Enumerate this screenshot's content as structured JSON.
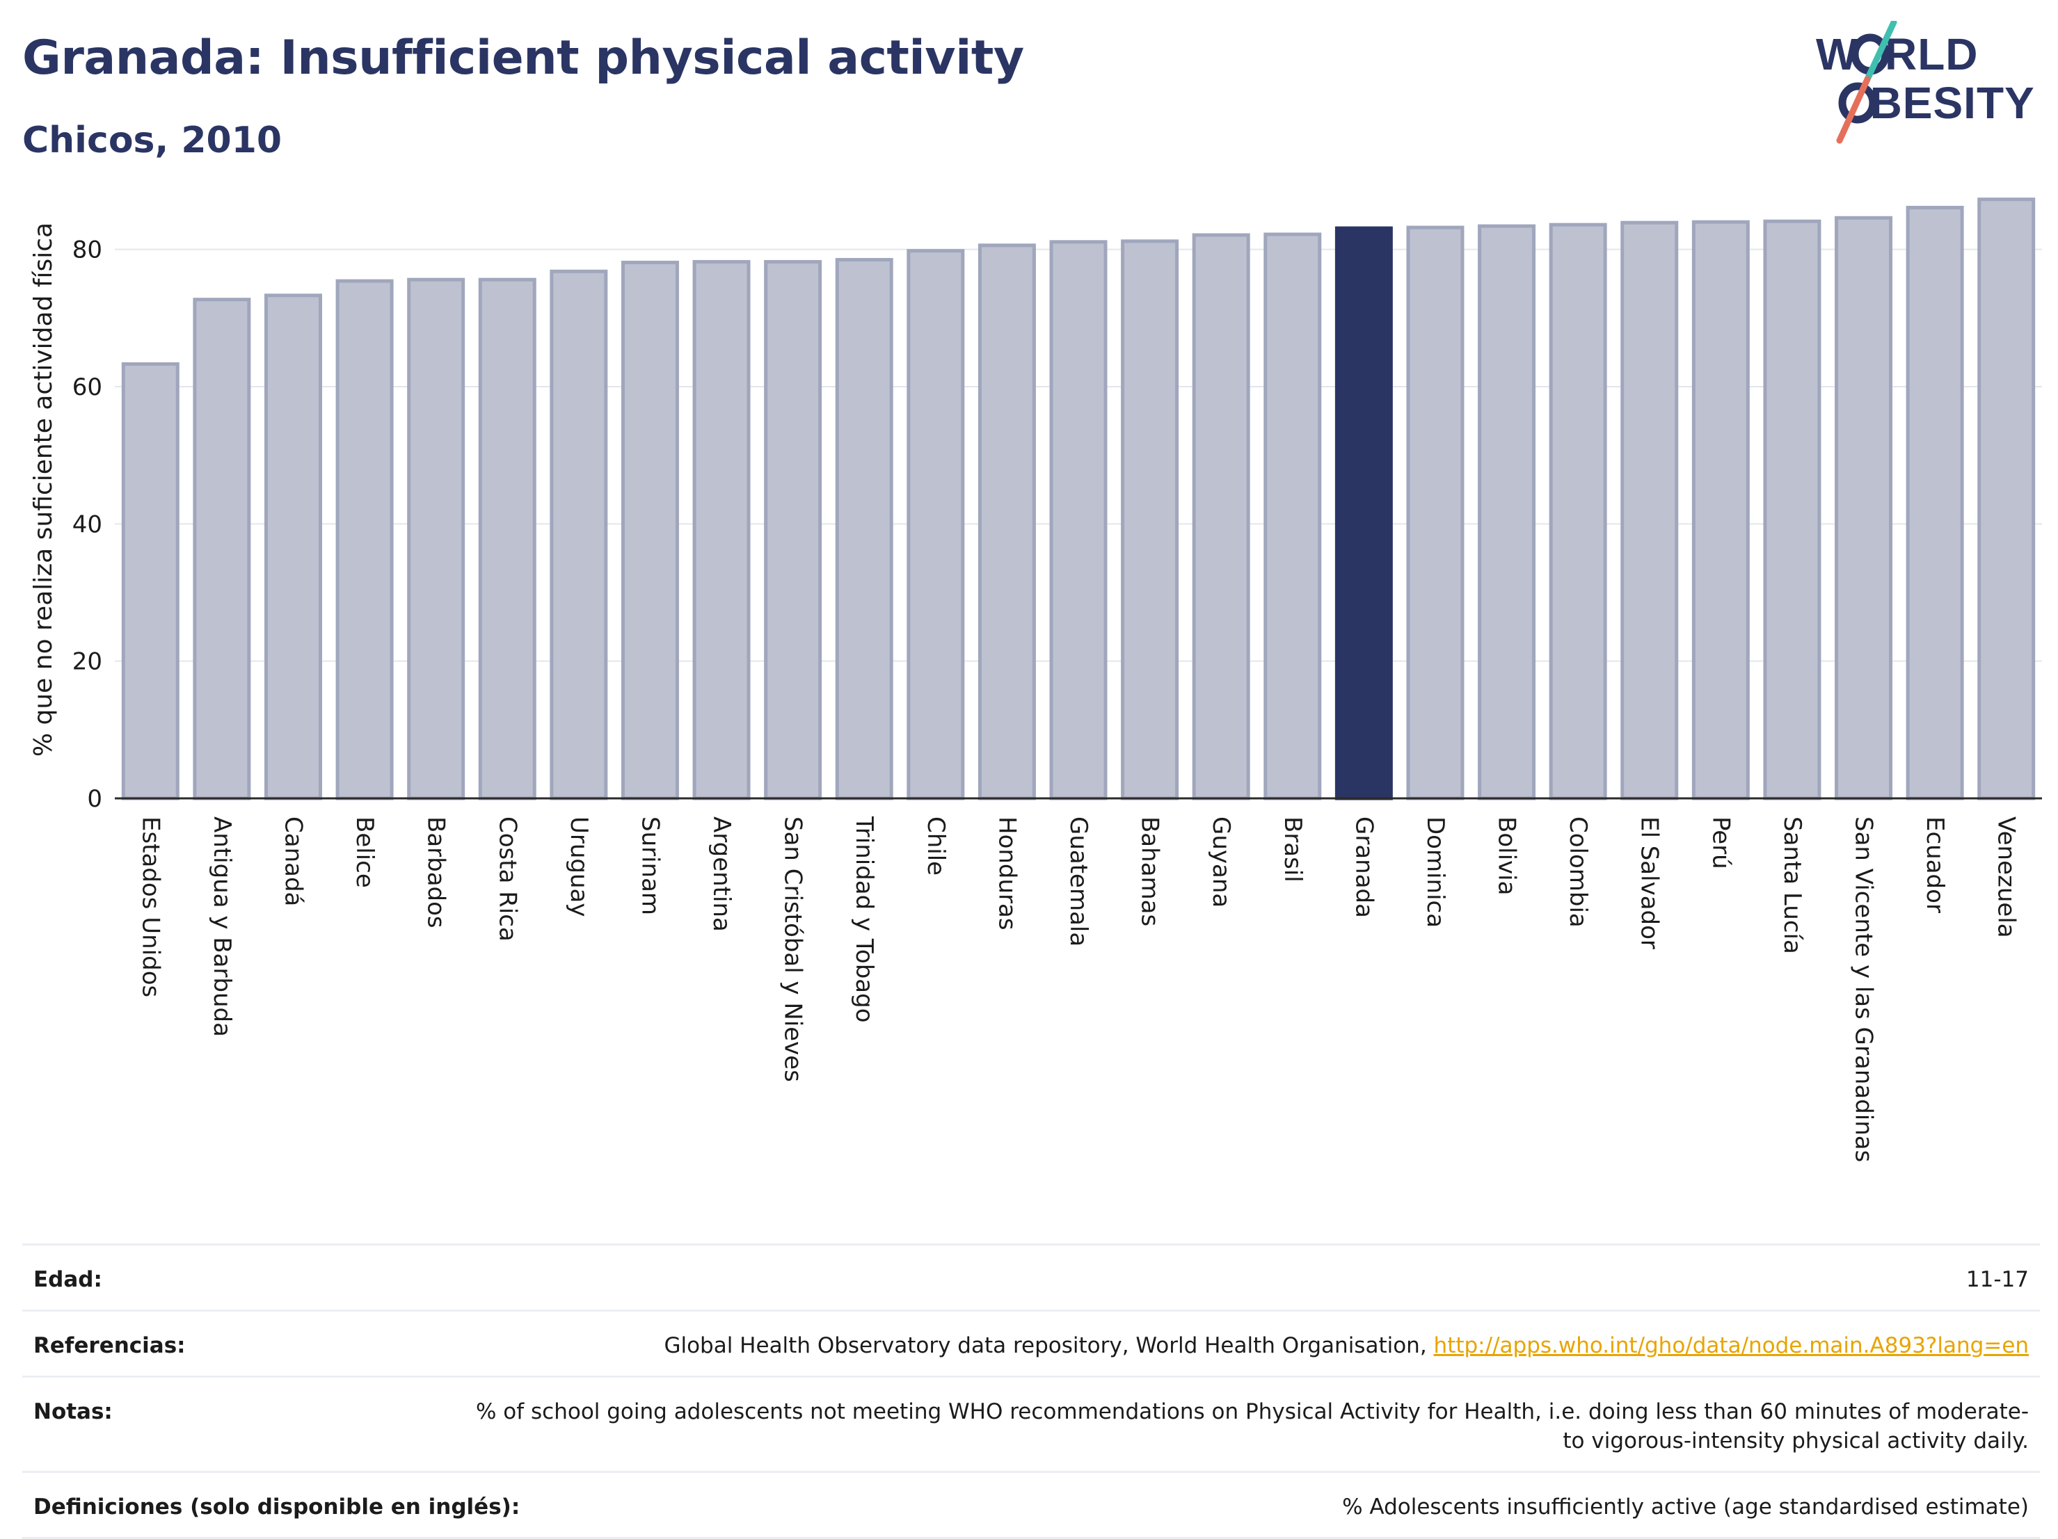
{
  "header": {
    "title": "Granada: Insufficient physical activity",
    "subtitle": "Chicos, 2010"
  },
  "logo": {
    "line1": "WORLD",
    "line2": "OBESITY"
  },
  "colors": {
    "bar": "#bec1d0",
    "bar_edge": "#a0a6bc",
    "highlight": "#2a3564",
    "title": "#2a3564",
    "link": "#e8a400",
    "logo_teal": "#3fbfb0",
    "logo_coral": "#e5705a"
  },
  "chart_data": {
    "type": "bar",
    "categories": [
      "Estados Unidos",
      "Antigua y Barbuda",
      "Canadá",
      "Belice",
      "Barbados",
      "Costa Rica",
      "Uruguay",
      "Surinam",
      "Argentina",
      "San Cristóbal y Nieves",
      "Trinidad y Tobago",
      "Chile",
      "Honduras",
      "Guatemala",
      "Bahamas",
      "Guyana",
      "Brasil",
      "Granada",
      "Dominica",
      "Bolivia",
      "Colombia",
      "El Salvador",
      "Perú",
      "Santa Lucía",
      "San Vicente y las Granadinas",
      "Ecuador",
      "Venezuela"
    ],
    "values": [
      63.3,
      72.7,
      73.3,
      75.4,
      75.6,
      75.6,
      76.8,
      78.1,
      78.2,
      78.2,
      78.5,
      79.8,
      80.6,
      81.1,
      81.2,
      82.1,
      82.2,
      83.1,
      83.2,
      83.4,
      83.6,
      83.9,
      84.0,
      84.1,
      84.6,
      86.1,
      87.3
    ],
    "highlight": "Granada",
    "ylabel": "% que no realiza suficiente actividad física",
    "xlabel": "",
    "ylim": [
      0,
      90
    ],
    "yticks": [
      0,
      20,
      40,
      60,
      80
    ],
    "grid": true
  },
  "footer": {
    "rows": [
      {
        "label": "Edad:",
        "value": "11-17"
      },
      {
        "label": "Referencias:",
        "value": "Global Health Observatory data repository, World Health Organisation, ",
        "link": "http://apps.who.int/gho/data/node.main.A893?lang=en"
      },
      {
        "label": "Notas:",
        "value": "% of school going adolescents not meeting WHO recommendations on Physical Activity for Health, i.e. doing less than 60 minutes of moderate- to vigorous-intensity physical activity daily."
      },
      {
        "label": "Definiciones (solo disponible en inglés):",
        "value": "% Adolescents insufficiently active (age standardised estimate)"
      }
    ]
  }
}
